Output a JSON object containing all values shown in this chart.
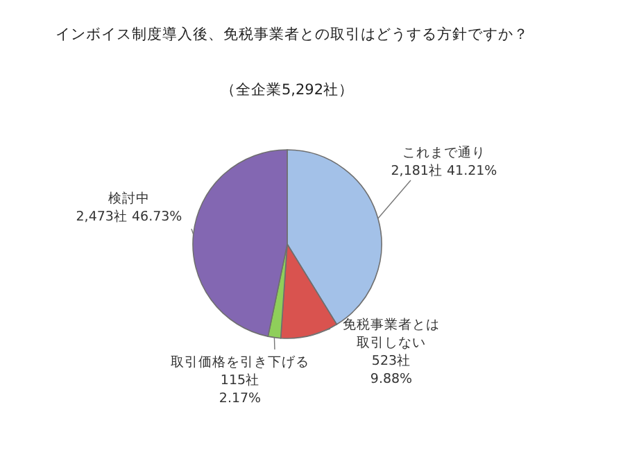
{
  "chart_data": {
    "type": "pie",
    "title": "インボイス制度導入後、免税事業者との取引はどうする方針ですか？",
    "subtitle": "（全企業5,292社）",
    "categories": [
      "これまで通り",
      "免税事業者とは取引しない",
      "取引価格を引き下げる",
      "検討中"
    ],
    "values": [
      2181,
      523,
      115,
      2473
    ],
    "value_labels": [
      "2,181社 41.21%",
      "523社 9.88%",
      "115社 2.17%",
      "2,473社 46.73%"
    ],
    "colors": [
      "#a3c1e8",
      "#d9534f",
      "#8fcf5a",
      "#8367b2"
    ]
  }
}
